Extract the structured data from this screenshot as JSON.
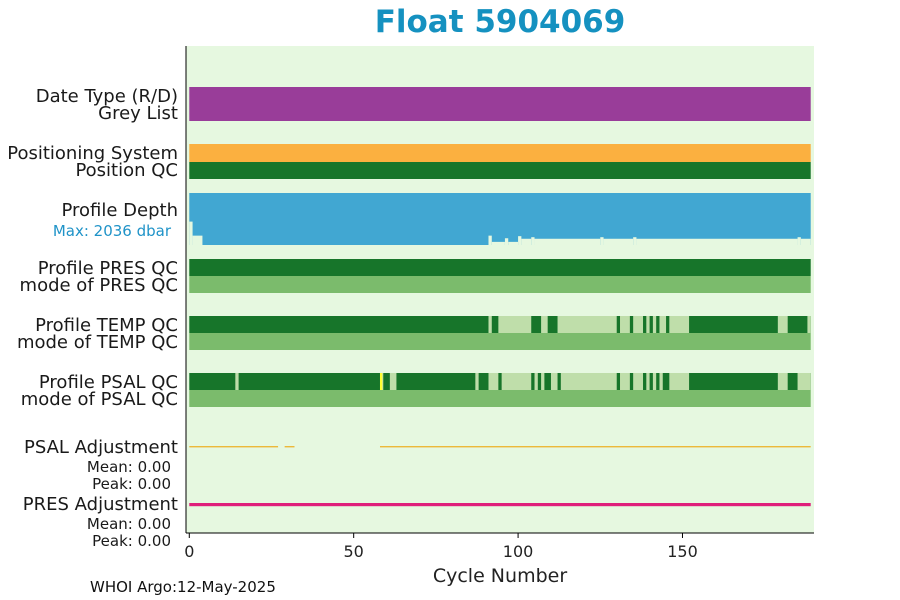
{
  "header": {
    "title": "Float 5904069"
  },
  "footer": {
    "text": "WHOI Argo:12-May-2025"
  },
  "labels": {
    "date_type": "Date Type (R/D)",
    "grey_list": "Grey List",
    "positioning_system": "Positioning System",
    "position_qc": "Position QC",
    "profile_depth": "Profile Depth",
    "max_depth": "Max: 2036 dbar",
    "profile_pres_qc": "Profile PRES QC",
    "mode_pres_qc": "mode of PRES QC",
    "profile_temp_qc": "Profile TEMP QC",
    "mode_temp_qc": "mode of TEMP QC",
    "profile_psal_qc": "Profile PSAL QC",
    "mode_psal_qc": "mode of PSAL QC",
    "psal_adjustment": "PSAL Adjustment",
    "psal_mean": "Mean: 0.00",
    "psal_peak": "Peak: 0.00",
    "pres_adjustment": "PRES Adjustment",
    "pres_mean": "Mean: 0.00",
    "pres_peak": "Peak: 0.00"
  },
  "chart_data": {
    "type": "bar",
    "title": "Float 5904069",
    "xlabel": "Cycle Number",
    "xlim": [
      -1,
      190
    ],
    "xticks": [
      0,
      50,
      100,
      150
    ],
    "max_cycle": 189,
    "colors": {
      "background": "#e6f8e0",
      "date_type": "#993d99",
      "positioning": "#fbb040",
      "qc_good": "#17752a",
      "qc_mode": "#7bbb6c",
      "qc_probably_good": "#bfdeaa",
      "qc_flag": "#ffff33",
      "depth": "#41a7d2",
      "psal_adj": "#ecb93a",
      "pres_adj": "#df1e7a"
    },
    "profile_depth": {
      "max_dbar": 2036,
      "full_from_cycle": 0,
      "shallow_cycles": [
        {
          "start": 0,
          "end": 1,
          "fraction": 0.45
        },
        {
          "start": 1,
          "end": 4,
          "fraction": 0.18
        },
        {
          "start": 91,
          "end": 92,
          "fraction": 0.18
        },
        {
          "start": 92,
          "end": 96,
          "fraction": 0.06
        },
        {
          "start": 96,
          "end": 97,
          "fraction": 0.13
        },
        {
          "start": 97,
          "end": 100,
          "fraction": 0.06
        },
        {
          "start": 100,
          "end": 101,
          "fraction": 0.17
        },
        {
          "start": 101,
          "end": 104,
          "fraction": 0.12
        },
        {
          "start": 104,
          "end": 105,
          "fraction": 0.15
        },
        {
          "start": 105,
          "end": 125,
          "fraction": 0.12
        },
        {
          "start": 125,
          "end": 126,
          "fraction": 0.15
        },
        {
          "start": 126,
          "end": 135,
          "fraction": 0.12
        },
        {
          "start": 135,
          "end": 136,
          "fraction": 0.15
        },
        {
          "start": 136,
          "end": 185,
          "fraction": 0.12
        },
        {
          "start": 185,
          "end": 186,
          "fraction": 0.15
        },
        {
          "start": 186,
          "end": 189,
          "fraction": 0.12
        }
      ]
    },
    "temp_qc_probably_good_cycles": [
      [
        91,
        92
      ],
      [
        94,
        104
      ],
      [
        107,
        109
      ],
      [
        112,
        130
      ],
      [
        131,
        134
      ],
      [
        135,
        138
      ],
      [
        139,
        140
      ],
      [
        141,
        142
      ],
      [
        143,
        145
      ],
      [
        146,
        152
      ],
      [
        179,
        182
      ],
      [
        188,
        189
      ]
    ],
    "psal_qc_probably_good_cycles": [
      [
        14,
        15
      ],
      [
        58,
        59
      ],
      [
        61,
        63
      ],
      [
        87,
        88
      ],
      [
        91,
        94
      ],
      [
        95,
        104
      ],
      [
        105,
        106
      ],
      [
        107,
        108
      ],
      [
        110,
        112
      ],
      [
        113,
        130
      ],
      [
        131,
        134
      ],
      [
        135,
        138
      ],
      [
        139,
        140
      ],
      [
        141,
        142
      ],
      [
        143,
        144
      ],
      [
        146,
        152
      ],
      [
        179,
        182
      ],
      [
        185,
        189
      ]
    ],
    "psal_qc_flag_cycles": [
      [
        58,
        59
      ]
    ],
    "psal_adjustment": {
      "mean": 0.0,
      "peak": 0.0,
      "gaps": [
        [
          27,
          29
        ],
        [
          32,
          58
        ]
      ]
    },
    "pres_adjustment": {
      "mean": 0.0,
      "peak": 0.0
    }
  }
}
